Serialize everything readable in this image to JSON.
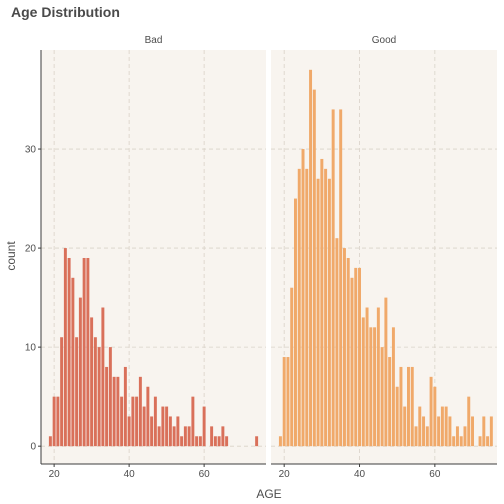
{
  "chart_data": {
    "type": "bar",
    "title": "Age Distribution",
    "xlabel": "AGE",
    "ylabel": "count",
    "xlim": [
      16.5,
      76.5
    ],
    "ylim": [
      -1.8,
      40
    ],
    "x_ticks": [
      20,
      40,
      60
    ],
    "y_ticks": [
      0,
      10,
      20,
      30
    ],
    "grid": true,
    "bin_width": 1,
    "colors": {
      "background": "#f8f4ef",
      "Bad": "#d9705a",
      "Good": "#f0a96a",
      "axis": "#3c3c3c"
    },
    "panels": [
      {
        "name": "Bad",
        "x": [
          19,
          20,
          21,
          22,
          23,
          24,
          25,
          26,
          27,
          28,
          29,
          30,
          31,
          32,
          33,
          34,
          35,
          36,
          37,
          38,
          39,
          40,
          41,
          42,
          43,
          44,
          45,
          46,
          47,
          48,
          49,
          50,
          51,
          52,
          53,
          54,
          55,
          56,
          57,
          58,
          59,
          60,
          61,
          62,
          63,
          64,
          65,
          66,
          67,
          68,
          69,
          70,
          71,
          72,
          73,
          74,
          75
        ],
        "values": [
          1,
          5,
          5,
          11,
          20,
          19,
          17,
          11,
          15,
          19,
          19,
          13,
          11,
          10,
          14,
          8,
          10,
          7,
          7,
          5,
          8,
          3,
          5,
          5,
          7,
          4,
          6,
          3,
          5,
          2,
          4,
          4,
          3,
          2,
          3,
          1,
          2,
          2,
          5,
          1,
          1,
          4,
          0,
          2,
          1,
          1,
          2,
          1,
          0,
          0,
          0,
          0,
          0,
          0,
          0,
          1,
          0
        ]
      },
      {
        "name": "Good",
        "x": [
          19,
          20,
          21,
          22,
          23,
          24,
          25,
          26,
          27,
          28,
          29,
          30,
          31,
          32,
          33,
          34,
          35,
          36,
          37,
          38,
          39,
          40,
          41,
          42,
          43,
          44,
          45,
          46,
          47,
          48,
          49,
          50,
          51,
          52,
          53,
          54,
          55,
          56,
          57,
          58,
          59,
          60,
          61,
          62,
          63,
          64,
          65,
          66,
          67,
          68,
          69,
          70,
          71,
          72,
          73,
          74,
          75
        ],
        "values": [
          1,
          9,
          9,
          16,
          25,
          28,
          30,
          28,
          38,
          36,
          27,
          29,
          28,
          27,
          34,
          21,
          34,
          20,
          19,
          17,
          18,
          18,
          13,
          14,
          12,
          12,
          14,
          10,
          15,
          9,
          12,
          6,
          8,
          4,
          8,
          8,
          2,
          4,
          3,
          2,
          7,
          6,
          3,
          4,
          4,
          3,
          1,
          2,
          1,
          2,
          5,
          3,
          0,
          1,
          3,
          1,
          3
        ]
      }
    ]
  }
}
